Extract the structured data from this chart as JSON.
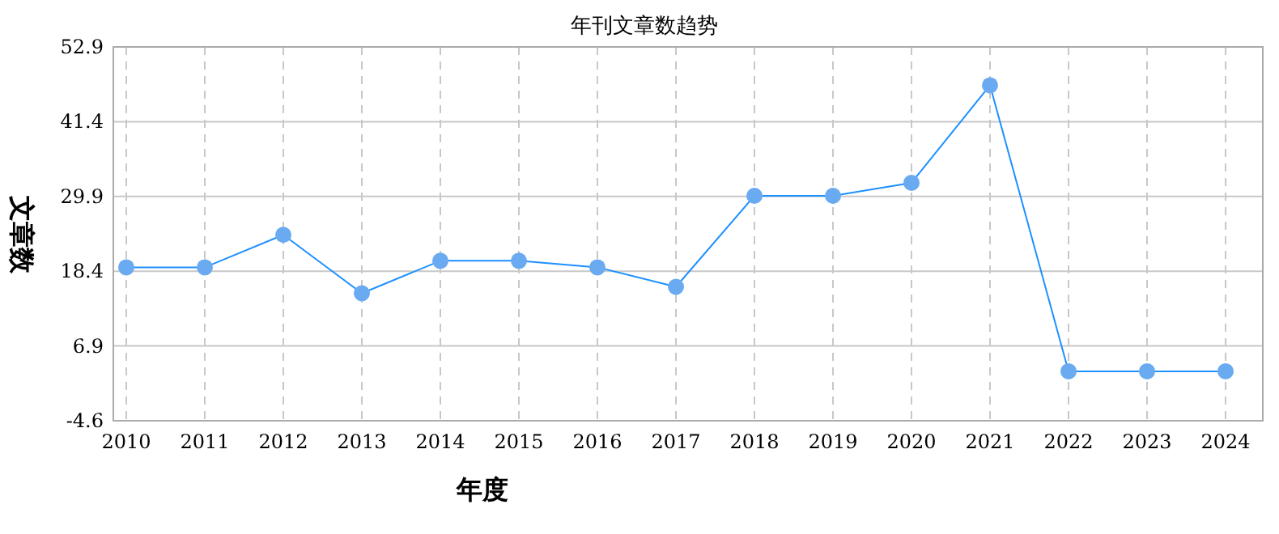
{
  "chart_data": {
    "type": "line",
    "title": "年刊文章数趋势",
    "xlabel": "年度",
    "ylabel": "文章数",
    "categories": [
      "2010",
      "2011",
      "2012",
      "2013",
      "2014",
      "2015",
      "2016",
      "2017",
      "2018",
      "2019",
      "2020",
      "2021",
      "2022",
      "2023",
      "2024"
    ],
    "series": [
      {
        "color": "#1e90ff",
        "values": [
          19,
          19,
          24,
          15,
          20,
          20,
          19,
          16,
          30,
          30,
          32,
          47,
          3,
          3,
          3
        ]
      }
    ],
    "ylim": [
      -4.6,
      52.9
    ],
    "yticks": [
      -4.6,
      6.9,
      18.4,
      29.9,
      41.4,
      52.9
    ],
    "grid": true,
    "marker": "circle"
  }
}
